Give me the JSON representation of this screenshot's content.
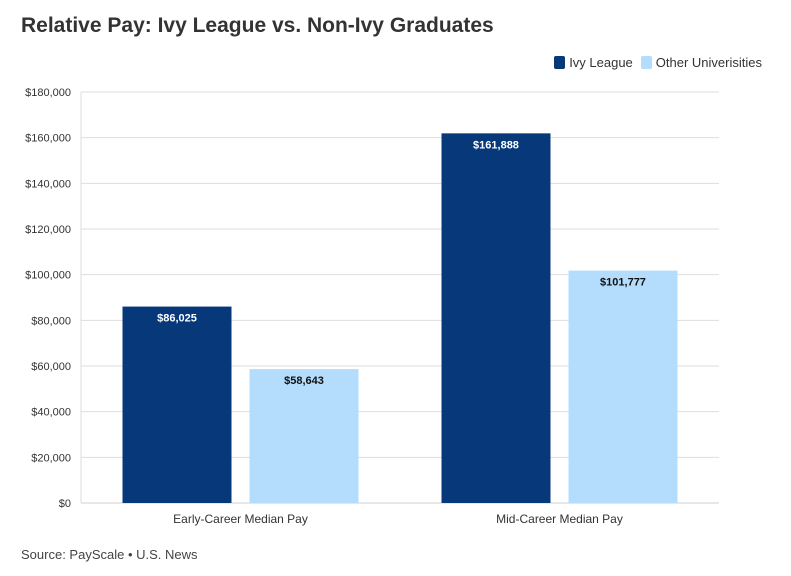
{
  "chart_data": {
    "type": "bar",
    "title": "Relative Pay: Ivy League vs. Non-Ivy Graduates",
    "categories": [
      "Early-Career Median Pay",
      "Mid-Career Median Pay"
    ],
    "series": [
      {
        "name": "Ivy League",
        "values": [
          86025,
          161888
        ],
        "labels": [
          "$86,025",
          "$161,888"
        ],
        "color": "#06387a",
        "label_color": "#ffffff"
      },
      {
        "name": "Other Univerisities",
        "values": [
          58643,
          101777
        ],
        "labels": [
          "$58,643",
          "$101,777"
        ],
        "color": "#b3dcfd",
        "label_color": "#111111"
      }
    ],
    "ylim": [
      0,
      180000
    ],
    "yticks": [
      0,
      20000,
      40000,
      60000,
      80000,
      100000,
      120000,
      140000,
      160000,
      180000
    ],
    "ytick_labels": [
      "$0",
      "$20,000",
      "$40,000",
      "$60,000",
      "$80,000",
      "$100,000",
      "$120,000",
      "$140,000",
      "$160,000",
      "$180,000"
    ],
    "xlabel": "",
    "ylabel": "",
    "grid": true,
    "legend_position": "top-right"
  },
  "source": "Source: PayScale • U.S. News"
}
